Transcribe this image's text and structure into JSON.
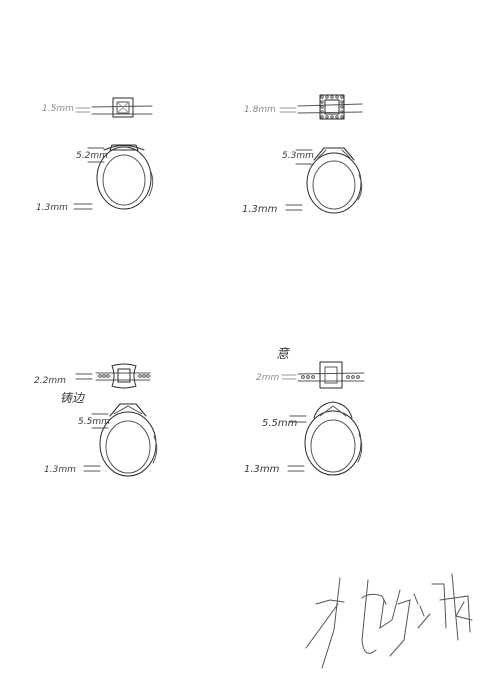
{
  "sketches": [
    {
      "id": "top-left",
      "band_label": "1.5mm",
      "stone_label": "5.2mm",
      "shank_label": "1.3mm",
      "top_note": "",
      "side_note": ""
    },
    {
      "id": "top-right",
      "band_label": "1.8mm",
      "stone_label": "5.3mm",
      "shank_label": "1.3mm",
      "top_note": "",
      "side_note": ""
    },
    {
      "id": "bottom-left",
      "band_label": "2.2mm",
      "stone_label": "5.5mm",
      "shank_label": "1.3mm",
      "top_note": "",
      "side_note": "铸边"
    },
    {
      "id": "bottom-right",
      "band_label": "2mm",
      "stone_label": "5.5mm",
      "shank_label": "1.3mm",
      "top_note": "意",
      "side_note": ""
    }
  ],
  "signature": "王七桥谢",
  "colors": {
    "ink": "#2a2a2a",
    "pencil": "#8a8a8a",
    "paper": "#ffffff"
  }
}
